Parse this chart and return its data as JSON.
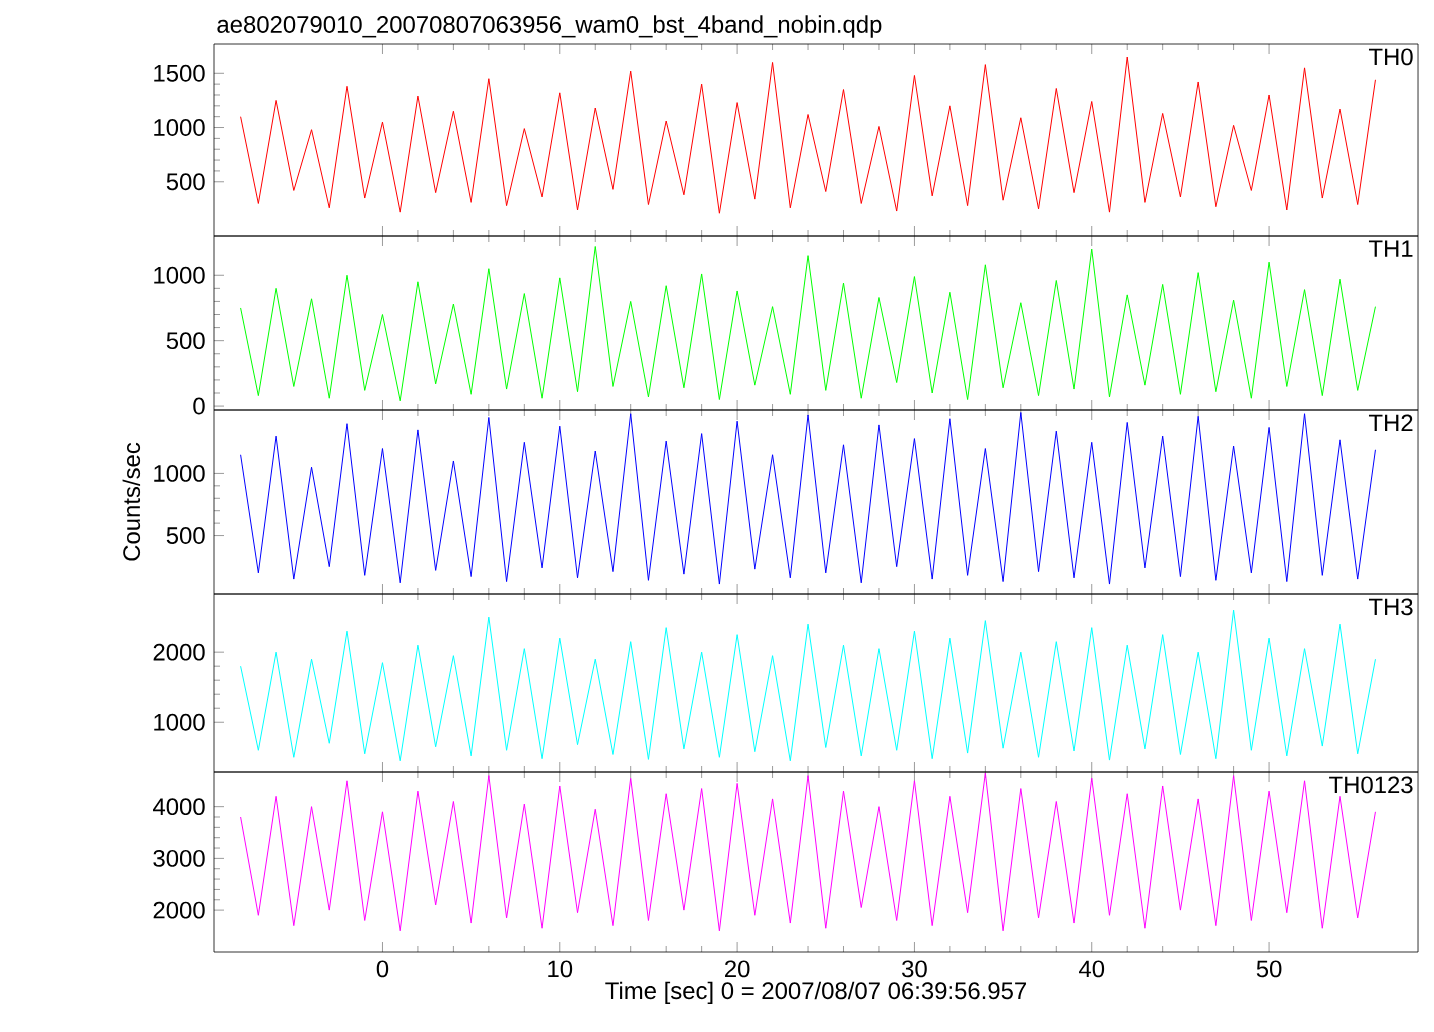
{
  "chart_data": [
    {
      "type": "line",
      "title": "ae802079010_20070807063956_wam0_bst_4band_nobin.qdp",
      "x": [
        -8,
        -7,
        -6,
        -5,
        -4,
        -3,
        -2,
        -1,
        0,
        1,
        2,
        3,
        4,
        5,
        6,
        7,
        8,
        9,
        10,
        11,
        12,
        13,
        14,
        15,
        16,
        17,
        18,
        19,
        20,
        21,
        22,
        23,
        24,
        25,
        26,
        27,
        28,
        29,
        30,
        31,
        32,
        33,
        34,
        35,
        36,
        37,
        38,
        39,
        40,
        41,
        42,
        43,
        44,
        45,
        46,
        47,
        48,
        49,
        50,
        51,
        52,
        53,
        54,
        55,
        56
      ],
      "series": [
        {
          "name": "TH0",
          "color": "#ff0000",
          "values": [
            1100,
            300,
            1250,
            420,
            980,
            260,
            1380,
            350,
            1050,
            220,
            1290,
            400,
            1150,
            310,
            1450,
            280,
            990,
            360,
            1320,
            240,
            1180,
            430,
            1520,
            290,
            1060,
            380,
            1400,
            210,
            1230,
            340,
            1600,
            260,
            1120,
            410,
            1350,
            300,
            1010,
            230,
            1480,
            370,
            1200,
            280,
            1580,
            330,
            1090,
            250,
            1360,
            400,
            1240,
            220,
            1650,
            310,
            1130,
            360,
            1420,
            270,
            1020,
            420,
            1300,
            240,
            1550,
            350,
            1170,
            290,
            1440
          ]
        }
      ],
      "xlim": [
        -9.5,
        58.4
      ],
      "xticks": [
        0,
        10,
        20,
        30,
        40,
        50
      ],
      "ylim": [
        0,
        1770
      ],
      "yticks": [
        500,
        1000,
        1500
      ],
      "tick_labels": "y"
    },
    {
      "type": "line",
      "x": [
        -8,
        -7,
        -6,
        -5,
        -4,
        -3,
        -2,
        -1,
        0,
        1,
        2,
        3,
        4,
        5,
        6,
        7,
        8,
        9,
        10,
        11,
        12,
        13,
        14,
        15,
        16,
        17,
        18,
        19,
        20,
        21,
        22,
        23,
        24,
        25,
        26,
        27,
        28,
        29,
        30,
        31,
        32,
        33,
        34,
        35,
        36,
        37,
        38,
        39,
        40,
        41,
        42,
        43,
        44,
        45,
        46,
        47,
        48,
        49,
        50,
        51,
        52,
        53,
        54,
        55,
        56
      ],
      "series": [
        {
          "name": "TH1",
          "color": "#00ff00",
          "values": [
            750,
            80,
            900,
            150,
            820,
            60,
            1000,
            120,
            700,
            40,
            950,
            170,
            780,
            90,
            1050,
            130,
            860,
            60,
            980,
            110,
            1220,
            150,
            800,
            70,
            920,
            140,
            1010,
            50,
            880,
            160,
            760,
            90,
            1150,
            120,
            940,
            60,
            830,
            180,
            990,
            100,
            870,
            50,
            1080,
            140,
            790,
            80,
            960,
            130,
            1200,
            70,
            850,
            160,
            930,
            90,
            1020,
            110,
            810,
            60,
            1100,
            150,
            890,
            80,
            970,
            120,
            760
          ]
        }
      ],
      "xlim": [
        -9.5,
        58.4
      ],
      "xticks": [
        0,
        10,
        20,
        30,
        40,
        50
      ],
      "ylim": [
        -30,
        1300
      ],
      "yticks": [
        0,
        500,
        1000
      ],
      "tick_labels": "y"
    },
    {
      "type": "line",
      "ylabel": "Counts/sec",
      "x": [
        -8,
        -7,
        -6,
        -5,
        -4,
        -3,
        -2,
        -1,
        0,
        1,
        2,
        3,
        4,
        5,
        6,
        7,
        8,
        9,
        10,
        11,
        12,
        13,
        14,
        15,
        16,
        17,
        18,
        19,
        20,
        21,
        22,
        23,
        24,
        25,
        26,
        27,
        28,
        29,
        30,
        31,
        32,
        33,
        34,
        35,
        36,
        37,
        38,
        39,
        40,
        41,
        42,
        43,
        44,
        45,
        46,
        47,
        48,
        49,
        50,
        51,
        52,
        53,
        54,
        55,
        56
      ],
      "series": [
        {
          "name": "TH2",
          "color": "#0000ff",
          "values": [
            1150,
            200,
            1300,
            150,
            1050,
            250,
            1400,
            180,
            1200,
            120,
            1350,
            220,
            1100,
            170,
            1450,
            130,
            1250,
            240,
            1380,
            160,
            1180,
            210,
            1480,
            140,
            1260,
            190,
            1320,
            110,
            1420,
            230,
            1150,
            160,
            1470,
            200,
            1230,
            120,
            1390,
            250,
            1280,
            150,
            1440,
            180,
            1200,
            130,
            1490,
            210,
            1340,
            160,
            1250,
            110,
            1410,
            240,
            1300,
            170,
            1460,
            140,
            1220,
            200,
            1370,
            130,
            1480,
            180,
            1270,
            150,
            1190
          ]
        }
      ],
      "xlim": [
        -9.5,
        58.4
      ],
      "xticks": [
        0,
        10,
        20,
        30,
        40,
        50
      ],
      "ylim": [
        30,
        1510
      ],
      "yticks": [
        500,
        1000
      ],
      "tick_labels": "y"
    },
    {
      "type": "line",
      "x": [
        -8,
        -7,
        -6,
        -5,
        -4,
        -3,
        -2,
        -1,
        0,
        1,
        2,
        3,
        4,
        5,
        6,
        7,
        8,
        9,
        10,
        11,
        12,
        13,
        14,
        15,
        16,
        17,
        18,
        19,
        20,
        21,
        22,
        23,
        24,
        25,
        26,
        27,
        28,
        29,
        30,
        31,
        32,
        33,
        34,
        35,
        36,
        37,
        38,
        39,
        40,
        41,
        42,
        43,
        44,
        45,
        46,
        47,
        48,
        49,
        50,
        51,
        52,
        53,
        54,
        55,
        56
      ],
      "series": [
        {
          "name": "TH3",
          "color": "#00ffff",
          "values": [
            1800,
            600,
            2000,
            500,
            1900,
            700,
            2300,
            550,
            1850,
            450,
            2100,
            650,
            1950,
            520,
            2500,
            600,
            2050,
            480,
            2200,
            680,
            1900,
            540,
            2150,
            470,
            2350,
            620,
            2000,
            500,
            2250,
            580,
            1950,
            450,
            2400,
            640,
            2100,
            520,
            2050,
            600,
            2300,
            480,
            2200,
            560,
            2450,
            630,
            2000,
            500,
            2150,
            590,
            2350,
            460,
            2100,
            620,
            2250,
            540,
            2000,
            480,
            2600,
            600,
            2200,
            520,
            2050,
            660,
            2400,
            550,
            1900
          ]
        }
      ],
      "xlim": [
        -9.5,
        58.4
      ],
      "xticks": [
        0,
        10,
        20,
        30,
        40,
        50
      ],
      "ylim": [
        290,
        2830
      ],
      "yticks": [
        1000,
        2000
      ],
      "tick_labels": "y"
    },
    {
      "type": "line",
      "xlabel": "Time [sec] 0 = 2007/08/07 06:39:56.957",
      "x": [
        -8,
        -7,
        -6,
        -5,
        -4,
        -3,
        -2,
        -1,
        0,
        1,
        2,
        3,
        4,
        5,
        6,
        7,
        8,
        9,
        10,
        11,
        12,
        13,
        14,
        15,
        16,
        17,
        18,
        19,
        20,
        21,
        22,
        23,
        24,
        25,
        26,
        27,
        28,
        29,
        30,
        31,
        32,
        33,
        34,
        35,
        36,
        37,
        38,
        39,
        40,
        41,
        42,
        43,
        44,
        45,
        46,
        47,
        48,
        49,
        50,
        51,
        52,
        53,
        54,
        55,
        56
      ],
      "series": [
        {
          "name": "TH0123",
          "color": "#ff00ff",
          "values": [
            3800,
            1900,
            4200,
            1700,
            4000,
            2000,
            4500,
            1800,
            3900,
            1600,
            4300,
            2100,
            4100,
            1750,
            4600,
            1850,
            4050,
            1650,
            4400,
            1950,
            3950,
            1700,
            4550,
            1800,
            4250,
            2000,
            4350,
            1600,
            4450,
            1900,
            4150,
            1750,
            4600,
            1650,
            4300,
            2050,
            4000,
            1800,
            4500,
            1700,
            4200,
            1950,
            4650,
            1600,
            4350,
            1850,
            4100,
            1750,
            4550,
            1900,
            4250,
            1650,
            4400,
            2000,
            4150,
            1700,
            4600,
            1800,
            4300,
            1950,
            4500,
            1650,
            4200,
            1850,
            3900
          ]
        }
      ],
      "xlim": [
        -9.5,
        58.4
      ],
      "xticks": [
        0,
        10,
        20,
        30,
        40,
        50
      ],
      "ylim": [
        1190,
        4670
      ],
      "yticks": [
        2000,
        3000,
        4000
      ]
    }
  ]
}
